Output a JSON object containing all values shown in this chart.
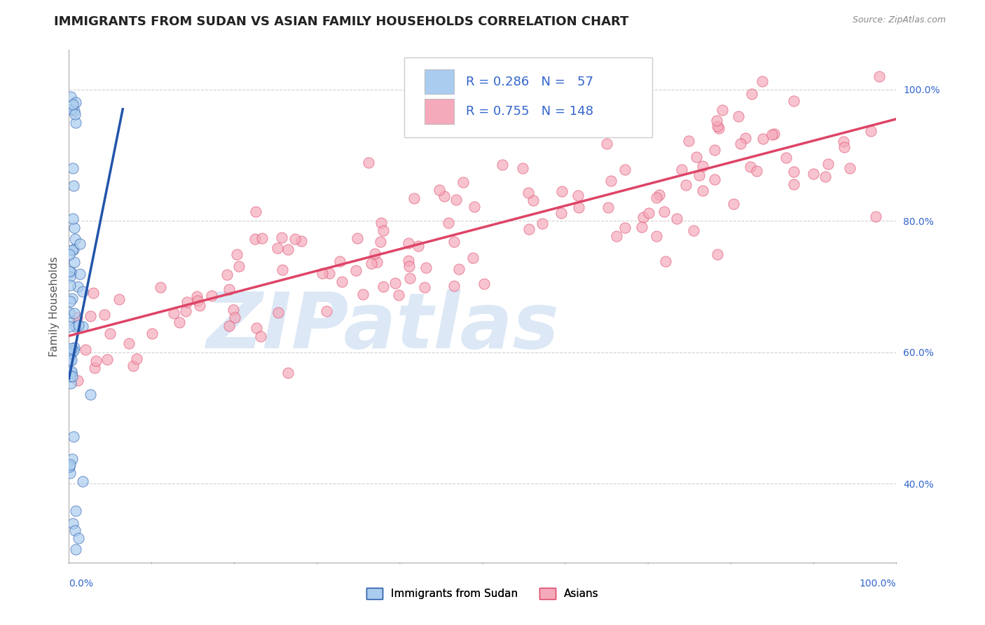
{
  "title": "IMMIGRANTS FROM SUDAN VS ASIAN FAMILY HOUSEHOLDS CORRELATION CHART",
  "source": "Source: ZipAtlas.com",
  "ylabel": "Family Households",
  "right_yticks": [
    "40.0%",
    "60.0%",
    "80.0%",
    "100.0%"
  ],
  "right_ytick_vals": [
    0.4,
    0.6,
    0.8,
    1.0
  ],
  "xlim": [
    0.0,
    1.0
  ],
  "ylim": [
    0.28,
    1.06
  ],
  "color_blue": "#aaccee",
  "color_pink": "#f5aabb",
  "line_blue": "#2255aa",
  "line_pink": "#dd4466",
  "watermark_text": "ZIPatlas",
  "watermark_color": "#dce8f5",
  "background_color": "#ffffff",
  "grid_color": "#cccccc",
  "legend_text_color": "#3366cc",
  "title_color": "#222222",
  "blue_trend_x": [
    0.0,
    0.065
  ],
  "blue_trend_y": [
    0.56,
    0.97
  ],
  "pink_trend_x": [
    0.0,
    1.0
  ],
  "pink_trend_y": [
    0.625,
    0.955
  ]
}
